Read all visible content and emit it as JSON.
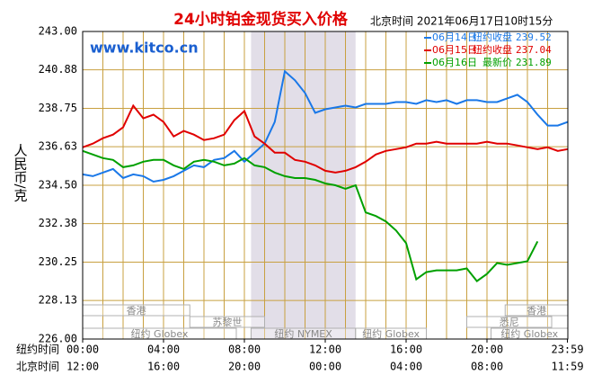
{
  "chart_data": {
    "type": "line",
    "title": "24小时铂金现货买入价格",
    "subtitle": "北京时间  2021年06月17日10时15分",
    "watermark": "www.kitco.cn",
    "ylabel": "人民币/克",
    "x_row_labels": [
      "纽约时间",
      "北京时间"
    ],
    "ylim": [
      226.0,
      243.0
    ],
    "yticks": [
      {
        "value": 226,
        "label": "226.00"
      },
      {
        "value": 228.13,
        "label": "228.13"
      },
      {
        "value": 230.25,
        "label": "230.25"
      },
      {
        "value": 232.38,
        "label": "232.38"
      },
      {
        "value": 234.5,
        "label": "234.50"
      },
      {
        "value": 236.63,
        "label": "236.63"
      },
      {
        "value": 238.75,
        "label": "238.75"
      },
      {
        "value": 240.88,
        "label": "240.88"
      },
      {
        "value": 243,
        "label": "243.00"
      }
    ],
    "xlim": [
      0,
      24
    ],
    "xticks": [
      {
        "value": 0,
        "label": "00:00"
      },
      {
        "value": 4,
        "label": "04:00"
      },
      {
        "value": 8,
        "label": "08:00"
      },
      {
        "value": 12,
        "label": "12:00"
      },
      {
        "value": 16,
        "label": "16:00"
      },
      {
        "value": 20,
        "label": "20:00"
      },
      {
        "value": 23.98,
        "label": "23:59"
      }
    ],
    "x_labels_beijing": [
      "12:00",
      "16:00",
      "20:00",
      "00:00",
      "04:00",
      "08:00",
      "11:59"
    ],
    "grid_step": 1,
    "highlight": [
      8.33,
      13.5
    ],
    "markets": [
      [
        {
          "label": "香港",
          "start": 0,
          "end": 5.3
        },
        {
          "label": "香港",
          "start": 20.9,
          "end": 24
        }
      ],
      [
        {
          "label": "苏黎世",
          "start": 5.3,
          "end": 9.0
        },
        {
          "label": "悉尼",
          "start": 19.0,
          "end": 23.2
        }
      ],
      [
        {
          "label": "纽约 Globex",
          "start": 0,
          "end": 7.6
        },
        {
          "label": "纽约 NYMEX",
          "start": 8.33,
          "end": 13.5
        },
        {
          "label": "纽约 Globex",
          "start": 13.5,
          "end": 17
        },
        {
          "label": "纽约 Globex",
          "start": 20.2,
          "end": 24
        }
      ]
    ],
    "x": [
      0,
      0.5,
      1,
      1.5,
      2,
      2.5,
      3,
      3.5,
      4,
      4.5,
      5,
      5.5,
      6,
      6.5,
      7,
      7.5,
      8,
      8.5,
      9,
      9.5,
      10,
      10.5,
      11,
      11.5,
      12,
      12.5,
      13,
      13.5,
      14,
      14.5,
      15,
      15.5,
      16,
      16.5,
      17,
      17.5,
      18,
      18.5,
      19,
      19.5,
      20,
      20.5,
      21,
      21.5,
      22,
      22.5,
      23,
      23.5,
      24
    ],
    "series": [
      {
        "name": "06月14日",
        "note": "纽约收盘",
        "last": 239.52,
        "color": "#1a78e8",
        "values": [
          235.1,
          235.0,
          235.2,
          235.4,
          234.9,
          235.1,
          235.0,
          234.7,
          234.8,
          235.0,
          235.3,
          235.6,
          235.5,
          235.9,
          236.0,
          236.4,
          235.8,
          236.3,
          236.8,
          238.0,
          240.8,
          240.3,
          239.6,
          238.5,
          238.7,
          238.8,
          238.9,
          238.8,
          239.0,
          239.0,
          239.0,
          239.1,
          239.1,
          239.0,
          239.2,
          239.1,
          239.2,
          239.0,
          239.2,
          239.2,
          239.1,
          239.1,
          239.3,
          239.5,
          239.1,
          238.4,
          237.8,
          237.8,
          238.0
        ]
      },
      {
        "name": "06月15日",
        "note": "纽约收盘",
        "last": 237.04,
        "color": "#e00000",
        "values": [
          236.6,
          236.8,
          237.1,
          237.3,
          237.7,
          238.9,
          238.2,
          238.4,
          238.0,
          237.2,
          237.5,
          237.3,
          237.0,
          237.1,
          237.3,
          238.1,
          238.6,
          237.2,
          236.8,
          236.3,
          236.3,
          235.9,
          235.8,
          235.6,
          235.3,
          235.2,
          235.3,
          235.5,
          235.8,
          236.2,
          236.4,
          236.5,
          236.6,
          236.8,
          236.8,
          236.9,
          236.8,
          236.8,
          236.8,
          236.8,
          236.9,
          236.8,
          236.8,
          236.7,
          236.6,
          236.5,
          236.6,
          236.4,
          236.5
        ]
      },
      {
        "name": "06月16日",
        "note": "最新价",
        "last": 231.89,
        "color": "#00a000",
        "values": [
          236.4,
          236.2,
          236.0,
          235.9,
          235.5,
          235.6,
          235.8,
          235.9,
          235.9,
          235.6,
          235.4,
          235.8,
          235.9,
          235.8,
          235.6,
          235.7,
          236.0,
          235.6,
          235.5,
          235.2,
          235.0,
          234.9,
          234.9,
          234.8,
          234.6,
          234.5,
          234.3,
          234.5,
          233.0,
          232.8,
          232.5,
          232.0,
          231.3,
          229.3,
          229.7,
          229.8,
          229.8,
          229.8,
          229.9,
          229.2,
          229.6,
          230.2,
          230.1,
          230.2,
          230.3,
          231.4,
          null,
          null,
          null
        ]
      }
    ]
  }
}
